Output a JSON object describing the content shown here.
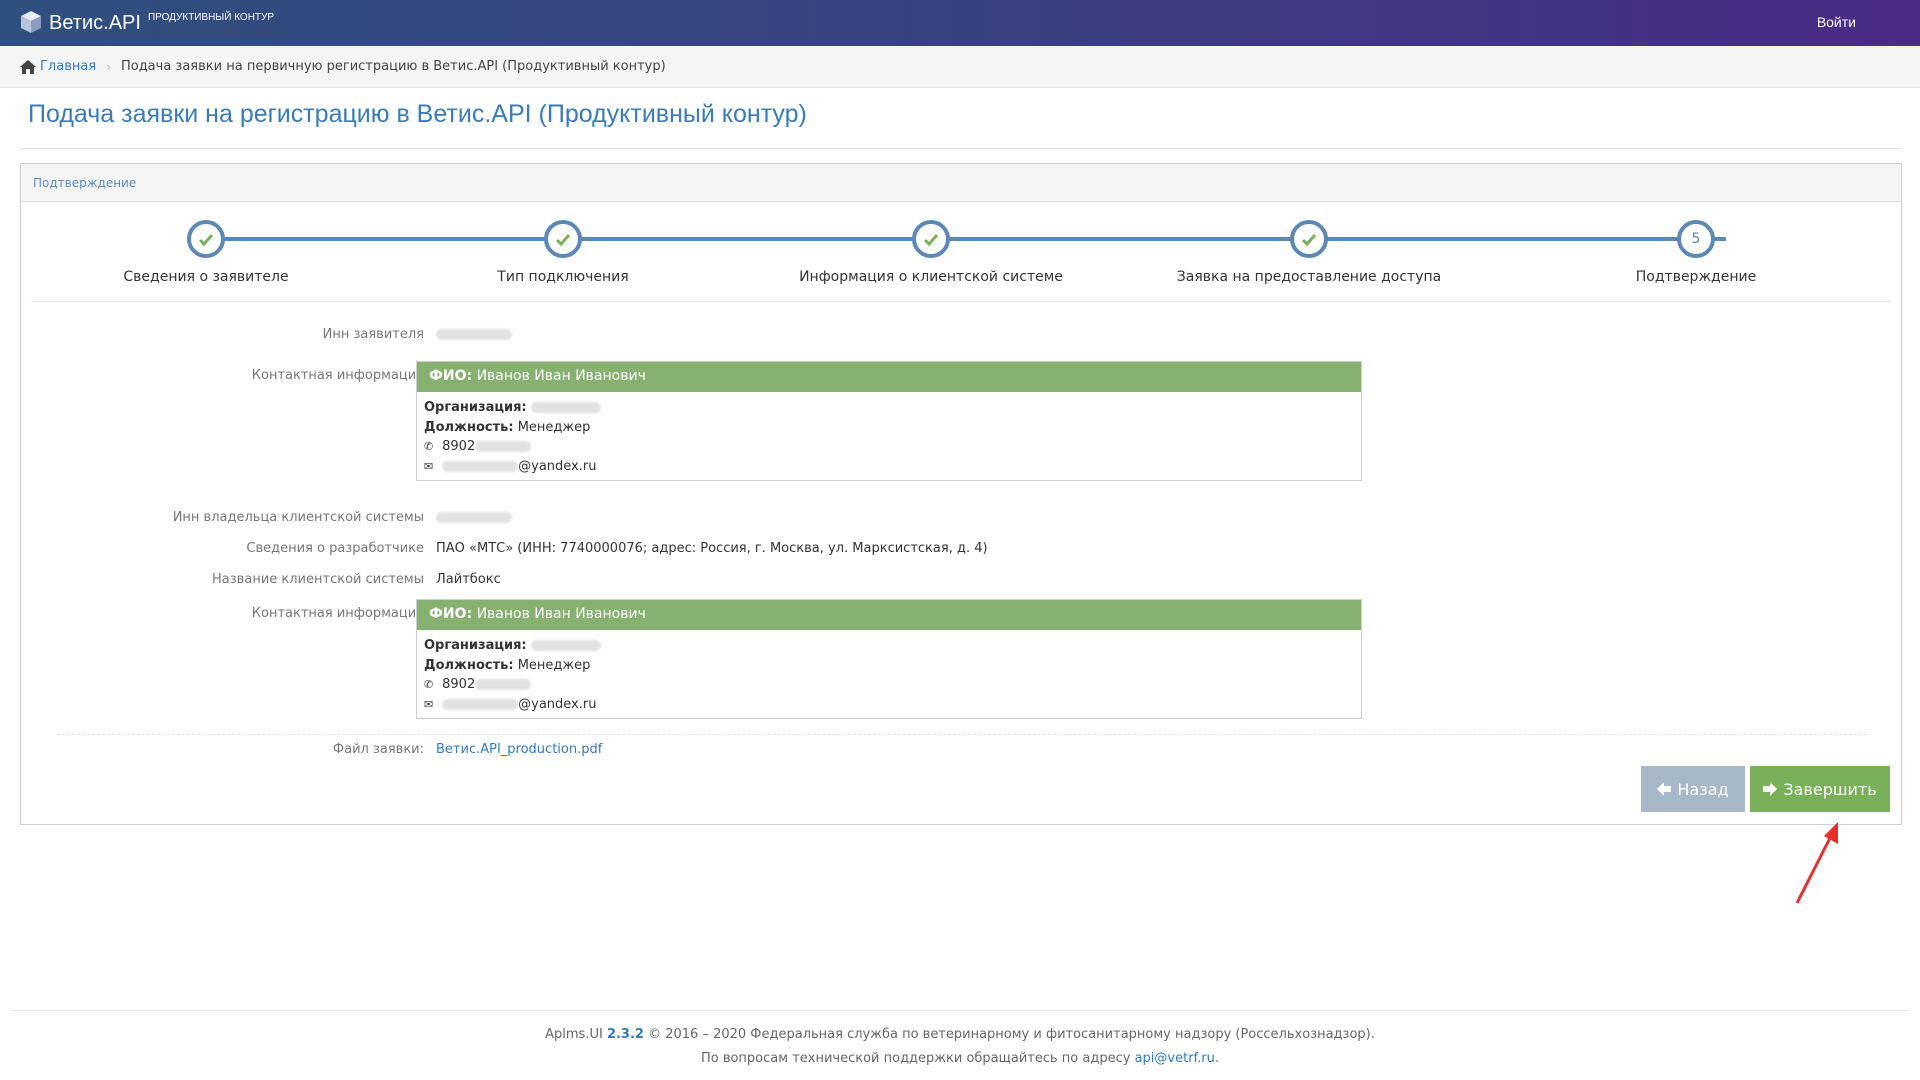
{
  "navbar": {
    "brand": "Ветис.API",
    "subtitle": "ПРОДУКТИВНЫЙ КОНТУР",
    "login": "Войти"
  },
  "breadcrumb": {
    "home": "Главная",
    "current": "Подача заявки на первичную регистрацию в Ветис.API (Продуктивный контур)"
  },
  "page": {
    "title": "Подача заявки на регистрацию в Ветис.API (Продуктивный контур)"
  },
  "panel": {
    "heading": "Подтверждение",
    "steps": [
      {
        "label": "Сведения о заявителе",
        "state": "done"
      },
      {
        "label": "Тип подключения",
        "state": "done"
      },
      {
        "label": "Информация о клиентской системе",
        "state": "done"
      },
      {
        "label": "Заявка на предоставление доступа",
        "state": "done"
      },
      {
        "label": "Подтверждение",
        "state": "current",
        "number": "5"
      }
    ]
  },
  "fields": {
    "inn_label": "Инн заявителя",
    "contact_label": "Контактная информация",
    "contact1": {
      "fio_label": "ФИО:",
      "fio": "Иванов Иван Иванович",
      "org_label": "Организация:",
      "position_label": "Должность:",
      "position": "Менеджер",
      "phone_prefix": "8902",
      "email_suffix": "@yandex.ru"
    },
    "owner_inn_label": "Инн владельца клиентской системы",
    "developer_label": "Сведения о разработчике",
    "developer": "ПАО «МТС» (ИНН: 7740000076; адрес: Россия, г. Москва, ул. Марксистская, д. 4)",
    "system_name_label": "Название клиентской системы",
    "system_name": "Лайтбокс",
    "contact2_label": "Контактная информация",
    "contact2": {
      "fio_label": "ФИО:",
      "fio": "Иванов Иван Иванович",
      "org_label": "Организация:",
      "position_label": "Должность:",
      "position": "Менеджер",
      "phone_prefix": "8902",
      "email_suffix": "@yandex.ru"
    },
    "file_label": "Файл заявки:",
    "file_name": "Ветис.API_production.pdf"
  },
  "buttons": {
    "back": "Назад",
    "finish": "Завершить"
  },
  "colors": {
    "accent": "#337ab7",
    "step": "#5b88b5",
    "card_header": "#86b171",
    "finish_button": "#79b05a",
    "back_button": "#a9b8c8",
    "annotation_arrow": "#e53030"
  },
  "footer": {
    "app": "Aplms.UI",
    "version": "2.3.2",
    "copyright": "© 2016 – 2020 Федеральная служба по ветеринарному и фитосанитарному надзору (Россельхознадзор).",
    "support_text": "По вопросам технической поддержки обращайтесь по адресу",
    "support_email": "api@vetrf.ru",
    "support_end": "."
  }
}
